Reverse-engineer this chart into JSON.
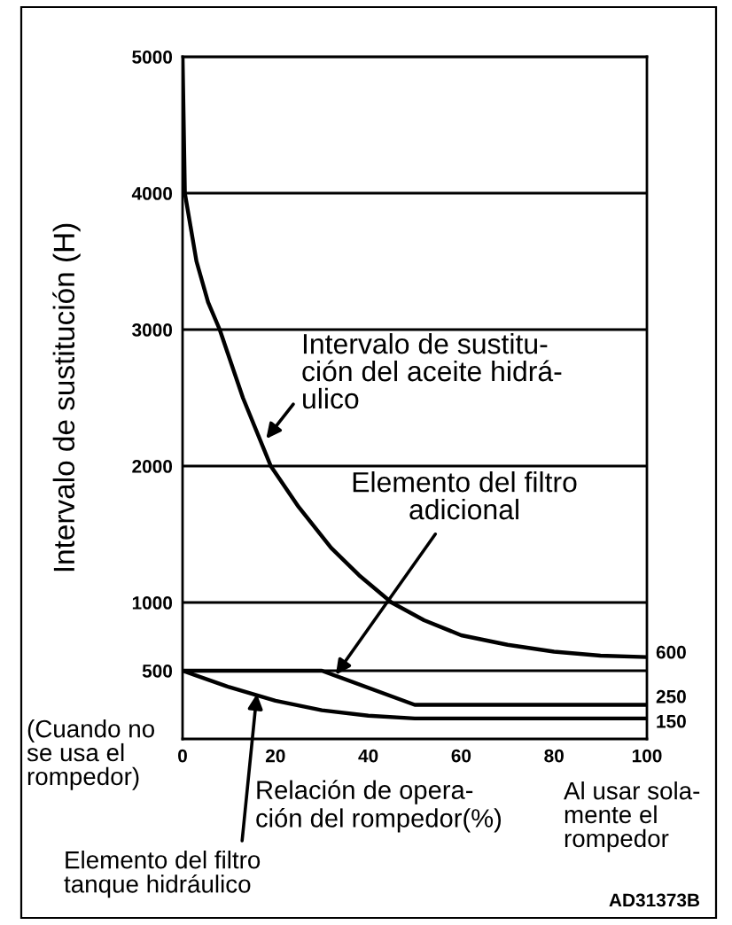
{
  "chart_data": {
    "type": "line",
    "xlabel": "Relación de opera-\nción del rompedor(%)",
    "ylabel": "Intervalo de sustitución (H)",
    "series": [
      {
        "color": "#000000",
        "x": [
          0,
          0.5,
          3,
          5.5,
          8,
          13,
          19,
          25,
          32,
          38,
          45,
          52,
          60,
          70,
          80,
          90,
          100
        ],
        "values": [
          5000,
          4000,
          3500,
          3200,
          3000,
          2500,
          2000,
          1700,
          1400,
          1200,
          1000,
          870,
          760,
          690,
          640,
          610,
          600
        ]
      },
      {
        "color": "#000000",
        "x": [
          0,
          30,
          50,
          100
        ],
        "values": [
          500,
          500,
          250,
          250
        ]
      },
      {
        "color": "#000000",
        "x": [
          0,
          10,
          20,
          30,
          40,
          50,
          100
        ],
        "values": [
          500,
          380,
          280,
          210,
          170,
          150,
          150
        ]
      }
    ],
    "xlim": [
      0,
      100
    ],
    "xticks": [
      0,
      20,
      40,
      60,
      80,
      100
    ],
    "ylim": [
      0,
      5000
    ],
    "yticks": [
      500,
      1000,
      2000,
      3000,
      4000,
      5000
    ],
    "grid": "y",
    "marker": "none",
    "line_style": "solid",
    "annotations": [
      {
        "text": "Intervalo de sustitu-\nción del aceite hidrá-\nulico",
        "x": 18,
        "y": 2200
      },
      {
        "text": "Elemento del filtro\nadicional",
        "x": 33,
        "y": 470
      },
      {
        "text": "Elemento del filtro\ntanque hidráulico",
        "x": 16,
        "y": 330
      },
      {
        "text": "600",
        "x": 100,
        "y": 600
      },
      {
        "text": "250",
        "x": 100,
        "y": 250
      },
      {
        "text": "150",
        "x": 100,
        "y": 150
      },
      "(Cuando no\nse usa el\nrompedor)",
      "Al usar sola-\nmente el\nrompedor",
      "AD31373B"
    ]
  }
}
